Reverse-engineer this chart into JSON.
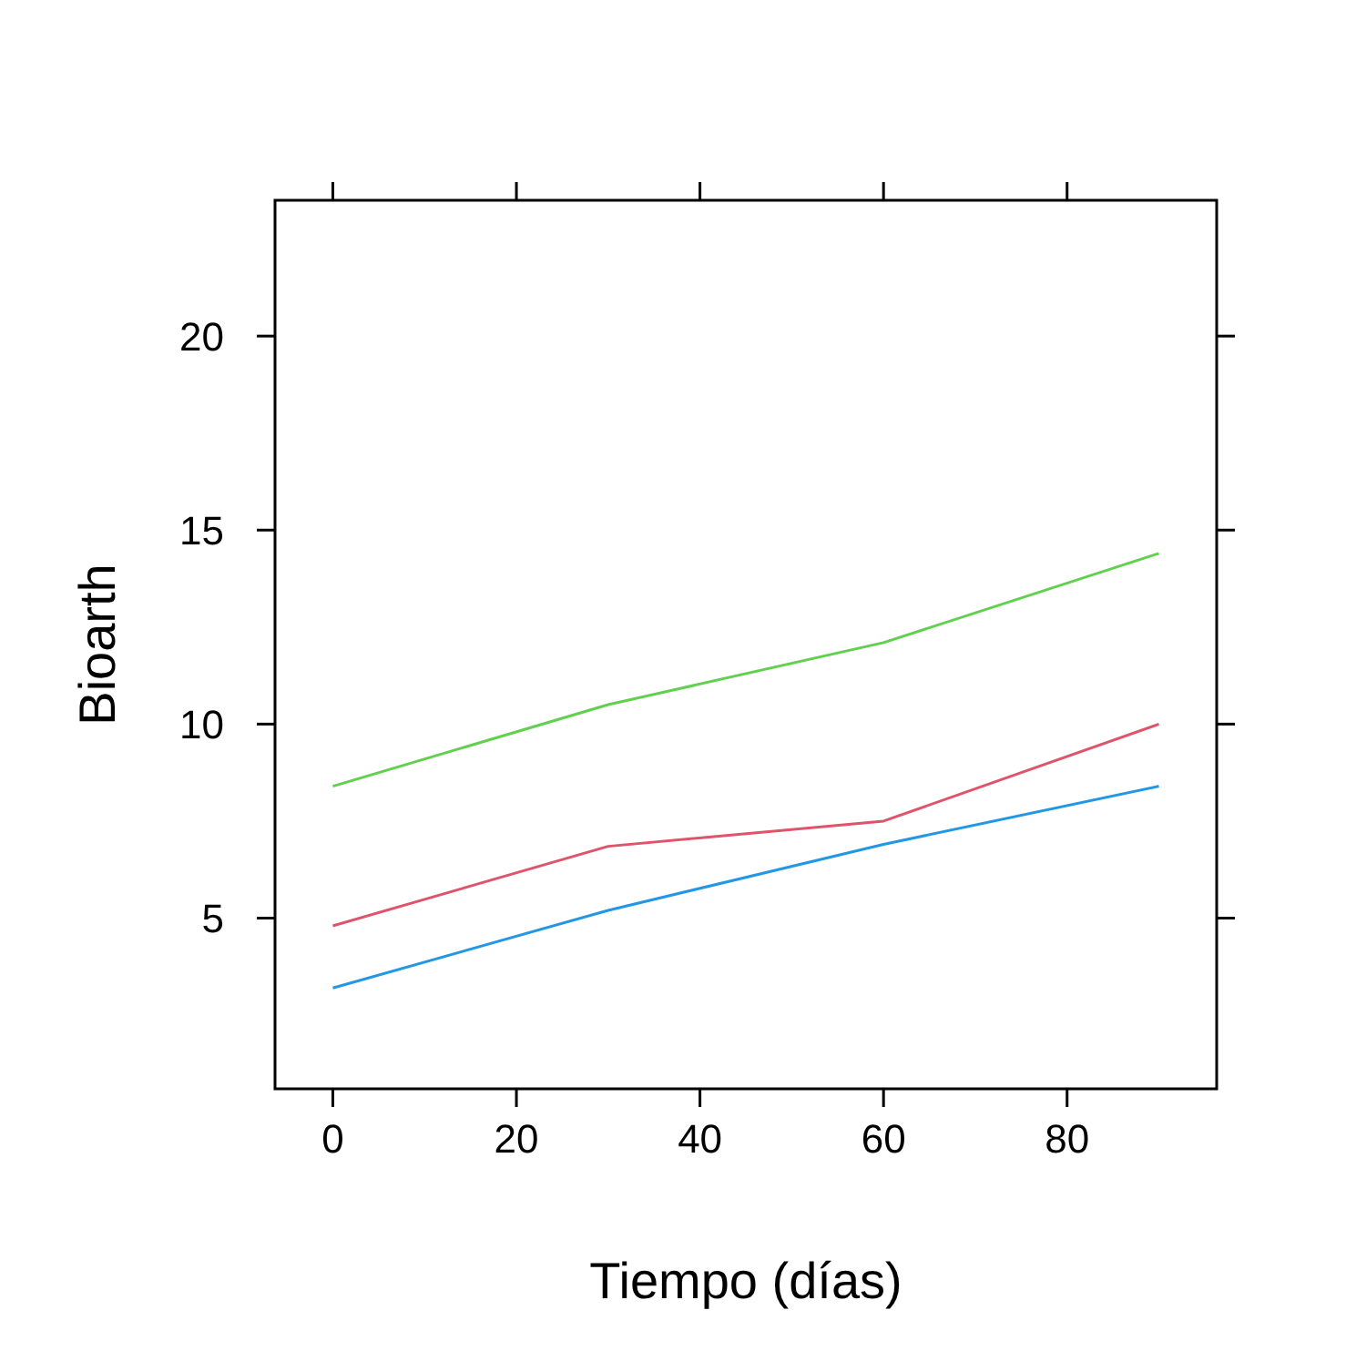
{
  "chart_data": {
    "type": "line",
    "xlabel": "Tiempo (días)",
    "ylabel": "Bioarth",
    "x": [
      0,
      30,
      60,
      90
    ],
    "series": [
      {
        "color": "#61d04f",
        "values": [
          8.4,
          10.5,
          12.1,
          14.4
        ]
      },
      {
        "color": "#df536b",
        "values": [
          4.8,
          6.85,
          7.5,
          10.0
        ]
      },
      {
        "color": "#2297e6",
        "values": [
          3.2,
          5.2,
          6.9,
          8.4
        ]
      }
    ],
    "xlim": [
      -6.3,
      96.3
    ],
    "ylim": [
      0.6,
      23.5
    ],
    "xticks": [
      0,
      20,
      40,
      60,
      80
    ],
    "yticks": [
      5,
      10,
      15,
      20
    ],
    "marker": "none",
    "line_style": "solid"
  }
}
